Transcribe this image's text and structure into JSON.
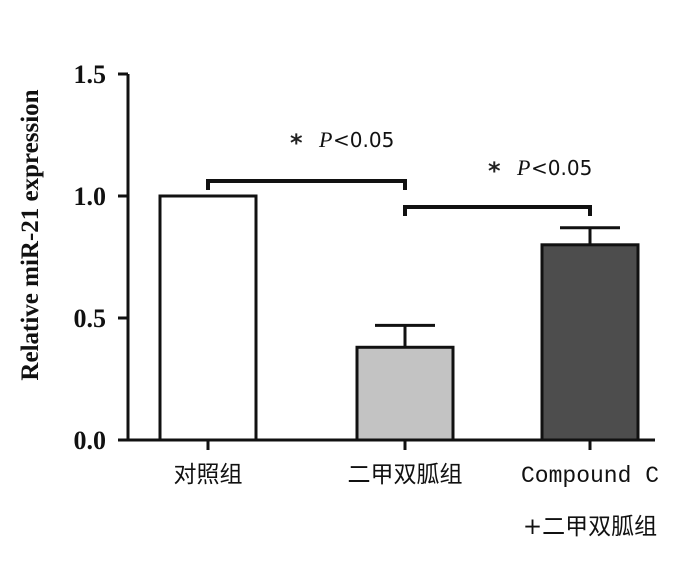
{
  "chart_data": {
    "type": "bar",
    "ylabel": "Relative miR-21 expression",
    "ylim": [
      0,
      1.5
    ],
    "yticks": [
      "0.0",
      "0.5",
      "1.0",
      "1.5"
    ],
    "categories": [
      {
        "lines": [
          "对照组"
        ]
      },
      {
        "lines": [
          "二甲双胍组"
        ]
      },
      {
        "lines": [
          "Compound C",
          "+二甲双胍组"
        ]
      }
    ],
    "values": [
      1.0,
      0.38,
      0.8
    ],
    "errors": [
      0,
      0.09,
      0.07
    ],
    "colors": [
      "#ffffff",
      "#c3c3c3",
      "#4d4d4d"
    ],
    "grid": false,
    "significance": [
      {
        "from": 0,
        "to": 1,
        "star": "*",
        "p": "P",
        "rest": "<0.05"
      },
      {
        "from": 1,
        "to": 2,
        "star": "*",
        "p": "P",
        "rest": "<0.05"
      }
    ]
  }
}
